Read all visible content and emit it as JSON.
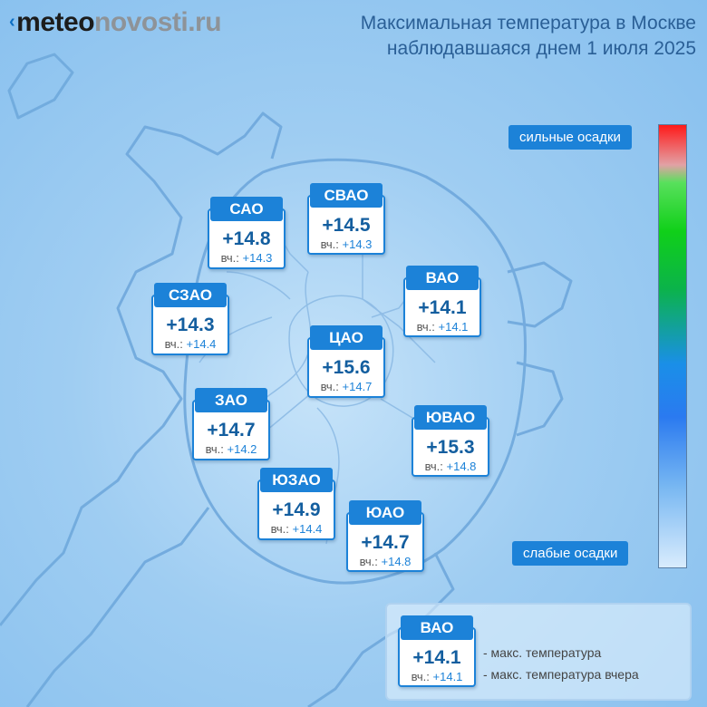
{
  "brand": {
    "prefix": "meteo",
    "suffix": "novosti.ru"
  },
  "title": {
    "line1": "Максимальная температура в Москве",
    "line2": "наблюдавшаяся днем 1 июля 2025"
  },
  "scale": {
    "top_label": "сильные осадки",
    "bottom_label": "слабые осадки"
  },
  "yesterday_prefix": "вч.:",
  "districts": [
    {
      "name": "САО",
      "temp": "+14.8",
      "prev": "+14.3"
    },
    {
      "name": "СВАО",
      "temp": "+14.5",
      "prev": "+14.3"
    },
    {
      "name": "ВАО",
      "temp": "+14.1",
      "prev": "+14.1"
    },
    {
      "name": "СЗАО",
      "temp": "+14.3",
      "prev": "+14.4"
    },
    {
      "name": "ЦАО",
      "temp": "+15.6",
      "prev": "+14.7"
    },
    {
      "name": "ЗАО",
      "temp": "+14.7",
      "prev": "+14.2"
    },
    {
      "name": "ЮВАО",
      "temp": "+15.3",
      "prev": "+14.8"
    },
    {
      "name": "ЮЗАО",
      "temp": "+14.9",
      "prev": "+14.4"
    },
    {
      "name": "ЮАО",
      "temp": "+14.7",
      "prev": "+14.8"
    }
  ],
  "legend": {
    "name": "ВАО",
    "temp": "+14.1",
    "prev": "+14.1",
    "temp_note": "- макс. температура",
    "prev_note": "- макс. температура вчера"
  }
}
